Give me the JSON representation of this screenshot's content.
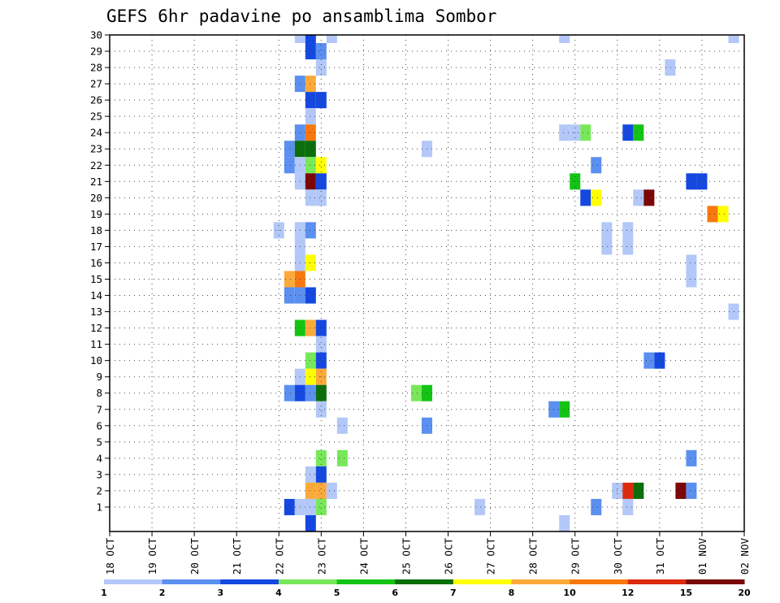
{
  "chart_data": {
    "type": "heatmap",
    "title": "GEFS 6hr padavine po ansamblima Sombor",
    "xlabel": "",
    "ylabel": "",
    "x_ticks": [
      "18 OCT",
      "19 OCT",
      "20 OCT",
      "21 OCT",
      "22 OCT",
      "23 OCT",
      "24 OCT",
      "25 OCT",
      "26 OCT",
      "27 OCT",
      "28 OCT",
      "29 OCT",
      "30 OCT",
      "31 OCT",
      "01 NOV",
      "02 NOV"
    ],
    "y_ticks": [
      "1",
      "2",
      "3",
      "4",
      "5",
      "6",
      "7",
      "8",
      "9",
      "10",
      "11",
      "12",
      "13",
      "14",
      "15",
      "16",
      "17",
      "18",
      "19",
      "20",
      "21",
      "22",
      "23",
      "24",
      "25",
      "26",
      "27",
      "28",
      "29",
      "30"
    ],
    "x_range_days": [
      0,
      15
    ],
    "y_range": [
      0,
      30
    ],
    "grid": true,
    "color_levels": [
      1,
      2,
      3,
      4,
      5,
      6,
      7,
      8,
      10,
      12,
      15,
      20
    ],
    "colorbar_labels": [
      "1",
      "2",
      "3",
      "4",
      "5",
      "6",
      "7",
      "8",
      "10",
      "12",
      "15",
      "20"
    ],
    "colors": [
      "#b3c8f8",
      "#5b8ff0",
      "#1448e0",
      "#78e85a",
      "#14c414",
      "#0b6e0b",
      "#ffff00",
      "#fbaa3a",
      "#f8780e",
      "#dc2a0c",
      "#7a0606"
    ],
    "cells": [
      [
        4.5,
        30,
        1
      ],
      [
        4.75,
        30,
        3
      ],
      [
        5.25,
        30,
        1
      ],
      [
        10.75,
        30,
        1
      ],
      [
        14.75,
        30,
        1
      ],
      [
        4.75,
        29,
        3
      ],
      [
        5.0,
        29,
        2
      ],
      [
        5.0,
        28,
        1
      ],
      [
        13.25,
        28,
        1
      ],
      [
        4.5,
        27,
        2
      ],
      [
        4.75,
        27,
        8
      ],
      [
        4.75,
        26,
        3
      ],
      [
        5.0,
        26,
        3
      ],
      [
        4.75,
        25,
        1
      ],
      [
        4.5,
        24,
        2
      ],
      [
        4.75,
        24,
        9
      ],
      [
        10.75,
        24,
        1
      ],
      [
        11.0,
        24,
        1
      ],
      [
        11.25,
        24,
        4
      ],
      [
        12.25,
        24,
        3
      ],
      [
        12.5,
        24,
        5
      ],
      [
        4.25,
        23,
        2
      ],
      [
        4.5,
        23,
        6
      ],
      [
        4.75,
        23,
        6
      ],
      [
        7.5,
        23,
        1
      ],
      [
        4.25,
        22,
        2
      ],
      [
        4.5,
        22,
        1
      ],
      [
        4.75,
        22,
        4
      ],
      [
        5.0,
        22,
        7
      ],
      [
        11.5,
        22,
        2
      ],
      [
        4.5,
        21,
        1
      ],
      [
        4.75,
        21,
        11
      ],
      [
        5.0,
        21,
        3
      ],
      [
        11.0,
        21,
        5
      ],
      [
        13.75,
        21,
        3
      ],
      [
        14.0,
        21,
        3
      ],
      [
        4.75,
        20,
        1
      ],
      [
        5.0,
        20,
        1
      ],
      [
        11.25,
        20,
        3
      ],
      [
        11.5,
        20,
        7
      ],
      [
        12.5,
        20,
        1
      ],
      [
        12.75,
        20,
        11
      ],
      [
        14.25,
        19,
        9
      ],
      [
        14.5,
        19,
        7
      ],
      [
        4.0,
        18,
        1
      ],
      [
        4.5,
        18,
        1
      ],
      [
        4.75,
        18,
        2
      ],
      [
        11.75,
        18,
        1
      ],
      [
        12.25,
        18,
        1
      ],
      [
        4.5,
        17,
        1
      ],
      [
        11.75,
        17,
        1
      ],
      [
        12.25,
        17,
        1
      ],
      [
        4.5,
        16,
        1
      ],
      [
        4.75,
        16,
        7
      ],
      [
        13.75,
        16,
        1
      ],
      [
        4.25,
        15,
        8
      ],
      [
        4.5,
        15,
        9
      ],
      [
        13.75,
        15,
        1
      ],
      [
        4.25,
        14,
        2
      ],
      [
        4.5,
        14,
        2
      ],
      [
        4.75,
        14,
        3
      ],
      [
        14.75,
        13,
        1
      ],
      [
        4.5,
        12,
        5
      ],
      [
        4.75,
        12,
        8
      ],
      [
        5.0,
        12,
        3
      ],
      [
        5.0,
        11,
        1
      ],
      [
        4.75,
        10,
        4
      ],
      [
        5.0,
        10,
        3
      ],
      [
        12.75,
        10,
        2
      ],
      [
        13.0,
        10,
        3
      ],
      [
        4.5,
        9,
        1
      ],
      [
        4.75,
        9,
        7
      ],
      [
        5.0,
        9,
        8
      ],
      [
        4.25,
        8,
        2
      ],
      [
        4.5,
        8,
        3
      ],
      [
        4.75,
        8,
        2
      ],
      [
        5.0,
        8,
        6
      ],
      [
        7.25,
        8,
        4
      ],
      [
        7.5,
        8,
        5
      ],
      [
        5.0,
        7,
        1
      ],
      [
        10.5,
        7,
        2
      ],
      [
        10.75,
        7,
        5
      ],
      [
        5.5,
        6,
        1
      ],
      [
        7.5,
        6,
        2
      ],
      [
        5.0,
        4,
        4
      ],
      [
        5.5,
        4,
        4
      ],
      [
        13.75,
        4,
        2
      ],
      [
        4.75,
        3,
        1
      ],
      [
        5.0,
        3,
        3
      ],
      [
        4.75,
        2,
        8
      ],
      [
        5.0,
        2,
        8
      ],
      [
        5.25,
        2,
        1
      ],
      [
        12.0,
        2,
        1
      ],
      [
        12.25,
        2,
        10
      ],
      [
        12.5,
        2,
        6
      ],
      [
        13.5,
        2,
        11
      ],
      [
        13.75,
        2,
        2
      ],
      [
        4.25,
        1,
        3
      ],
      [
        4.5,
        1,
        1
      ],
      [
        4.75,
        1,
        1
      ],
      [
        5.0,
        1,
        4
      ],
      [
        8.75,
        1,
        1
      ],
      [
        11.5,
        1,
        2
      ],
      [
        12.25,
        1,
        1
      ],
      [
        4.75,
        0,
        3
      ],
      [
        10.75,
        0,
        1
      ]
    ]
  }
}
